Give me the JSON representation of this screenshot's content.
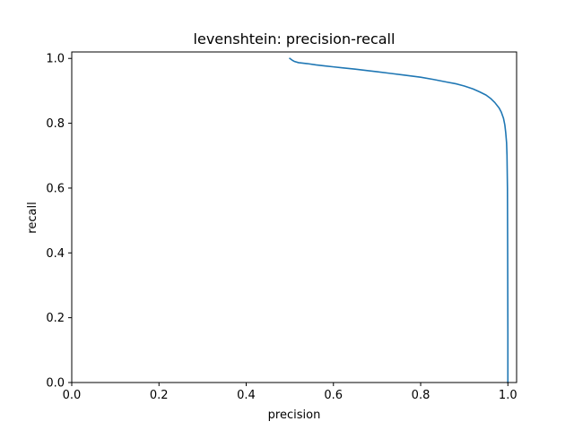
{
  "chart_data": {
    "type": "line",
    "title": "levenshtein: precision-recall",
    "xlabel": "precision",
    "ylabel": "recall",
    "xlim": [
      0.0,
      1.02
    ],
    "ylim": [
      0.0,
      1.02
    ],
    "xticks": [
      0.0,
      0.2,
      0.4,
      0.6,
      0.8,
      1.0
    ],
    "yticks": [
      0.0,
      0.2,
      0.4,
      0.6,
      0.8,
      1.0
    ],
    "xtick_labels": [
      "0.0",
      "0.2",
      "0.4",
      "0.6",
      "0.8",
      "1.0"
    ],
    "ytick_labels": [
      "0.0",
      "0.2",
      "0.4",
      "0.6",
      "0.8",
      "1.0"
    ],
    "grid": false,
    "legend": "none",
    "series": [
      {
        "color": "#1f77b4",
        "x": [
          0.5,
          0.505,
          0.51,
          0.52,
          0.54,
          0.56,
          0.58,
          0.6,
          0.62,
          0.65,
          0.68,
          0.7,
          0.73,
          0.76,
          0.8,
          0.83,
          0.86,
          0.88,
          0.9,
          0.92,
          0.935,
          0.95,
          0.96,
          0.97,
          0.98,
          0.985,
          0.99,
          0.993,
          0.995,
          0.997,
          0.998,
          0.999,
          0.9995,
          1.0,
          1.0
        ],
        "y": [
          1.0,
          0.995,
          0.991,
          0.987,
          0.984,
          0.98,
          0.977,
          0.974,
          0.971,
          0.967,
          0.962,
          0.959,
          0.954,
          0.949,
          0.942,
          0.935,
          0.927,
          0.922,
          0.915,
          0.906,
          0.897,
          0.887,
          0.877,
          0.864,
          0.847,
          0.834,
          0.815,
          0.795,
          0.772,
          0.74,
          0.7,
          0.6,
          0.4,
          0.15,
          0.0
        ]
      }
    ]
  }
}
